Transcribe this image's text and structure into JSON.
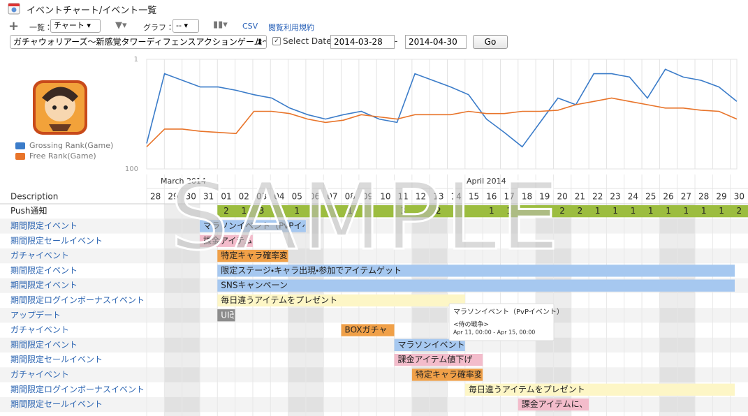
{
  "header": {
    "title": "イベントチャート/イベント一覧",
    "list_label": "一覧：",
    "list_value": "チャート",
    "graph_label": "グラフ：",
    "graph_value": "--",
    "csv": "CSV",
    "terms": "閲覧利用規約"
  },
  "filter": {
    "app": "ガチャウォリアーズ〜新感覚タワーディフェンスアクションゲーム〜",
    "select_date": "Select Date",
    "from": "2014-03-28",
    "separator": "-",
    "to": "2014-04-30",
    "go": "Go"
  },
  "chart_data": {
    "type": "line",
    "categories": [
      "28",
      "29",
      "30",
      "31",
      "01",
      "02",
      "03",
      "04",
      "05",
      "06",
      "07",
      "08",
      "09",
      "10",
      "11",
      "12",
      "13",
      "14",
      "15",
      "16",
      "17",
      "18",
      "19",
      "20",
      "21",
      "22",
      "23",
      "24",
      "25",
      "26",
      "27",
      "28",
      "29",
      "30"
    ],
    "series": [
      {
        "name": "Grossing Rank(Game)",
        "color": "#3b7cc9",
        "values": [
          77,
          14,
          20,
          26,
          26,
          29,
          33,
          36,
          45,
          51,
          55,
          51,
          48,
          55,
          58,
          14,
          20,
          26,
          33,
          55,
          67,
          80,
          58,
          36,
          42,
          14,
          14,
          17,
          36,
          10,
          17,
          20,
          26,
          39
        ]
      },
      {
        "name": "Free Rank(Game)",
        "color": "#e8742a",
        "values": [
          80,
          64,
          64,
          66,
          67,
          68,
          48,
          48,
          50,
          55,
          58,
          56,
          51,
          53,
          55,
          51,
          51,
          51,
          48,
          50,
          50,
          48,
          48,
          47,
          42,
          39,
          36,
          39,
          42,
          45,
          45,
          47,
          48,
          55
        ]
      }
    ],
    "ylim": [
      100,
      1
    ],
    "yticks": [
      1,
      100
    ],
    "grid": true
  },
  "timeline": {
    "months": [
      "March 2014",
      "April 2014"
    ],
    "description_header": "Description",
    "push": {
      "label": "Push通知",
      "color": "#9cbd3f",
      "counts": [
        null,
        null,
        null,
        null,
        2,
        1,
        3,
        null,
        1,
        null,
        null,
        1,
        null,
        null,
        3,
        null,
        2,
        null,
        null,
        1,
        1,
        null,
        null,
        2,
        2,
        1,
        1,
        1,
        1,
        1,
        1,
        1,
        1,
        2
      ]
    },
    "events": [
      {
        "description": "期間限定イベント",
        "label": "マラソンイベント（PvPイベント）",
        "start": "2014-03-31",
        "end": "2014-04-05",
        "color": "#a6c8f0"
      },
      {
        "description": "期間限定セールイベント",
        "label": "課金アイテム値下げ",
        "start": "2014-03-31",
        "end": "2014-04-02",
        "color": "#f3bccb"
      },
      {
        "description": "ガチャイベント",
        "label": "特定キャラ確率変動",
        "start": "2014-04-01",
        "end": "2014-04-04",
        "color": "#f0a048"
      },
      {
        "description": "期間限定イベント",
        "label": "限定ステージ・キャラ出現・参加でアイテムゲット",
        "start": "2014-04-01",
        "end": "2014-04-30",
        "color": "#a6c8f0"
      },
      {
        "description": "期間限定イベント",
        "label": "SNSキャンペーン",
        "start": "2014-04-01",
        "end": "2014-04-30",
        "color": "#a6c8f0"
      },
      {
        "description": "期間限定ログインボーナスイベント",
        "label": "毎日違うアイテムをプレゼント",
        "start": "2014-04-01",
        "end": "2014-04-14",
        "color": "#fdf6c6"
      },
      {
        "description": "アップデート",
        "label": "UI改善",
        "start": "2014-04-01",
        "end": "2014-04-01",
        "color": "#8c8c8c"
      },
      {
        "description": "ガチャイベント",
        "label": "BOXガチャ",
        "start": "2014-04-08",
        "end": "2014-04-10",
        "color": "#f0a048"
      },
      {
        "description": "期間限定イベント",
        "label": "マラソンイベント",
        "start": "2014-04-11",
        "end": "2014-04-14",
        "color": "#a6c8f0"
      },
      {
        "description": "期間限定セールイベント",
        "label": "課金アイテム値下げ",
        "start": "2014-04-11",
        "end": "2014-04-15",
        "color": "#f3bccb"
      },
      {
        "description": "ガチャイベント",
        "label": "特定キャラ確率変動",
        "start": "2014-04-12",
        "end": "2014-04-15",
        "color": "#f0a048"
      },
      {
        "description": "期間限定ログインボーナスイベント",
        "label": "毎日違うアイテムをプレゼント",
        "start": "2014-04-15",
        "end": "2014-04-30",
        "color": "#fdf6c6"
      },
      {
        "description": "期間限定セールイベント",
        "label": "課金アイテムに、プ",
        "start": "2014-04-18",
        "end": "2014-04-21",
        "color": "#f3bccb"
      }
    ]
  },
  "tooltip": {
    "title": "マラソンイベント（PvPイベント）",
    "subtitle": "<侍の戦争>",
    "period": "Apr 11, 00:00 - Apr 15, 00:00"
  },
  "watermark": "SAMPLE"
}
